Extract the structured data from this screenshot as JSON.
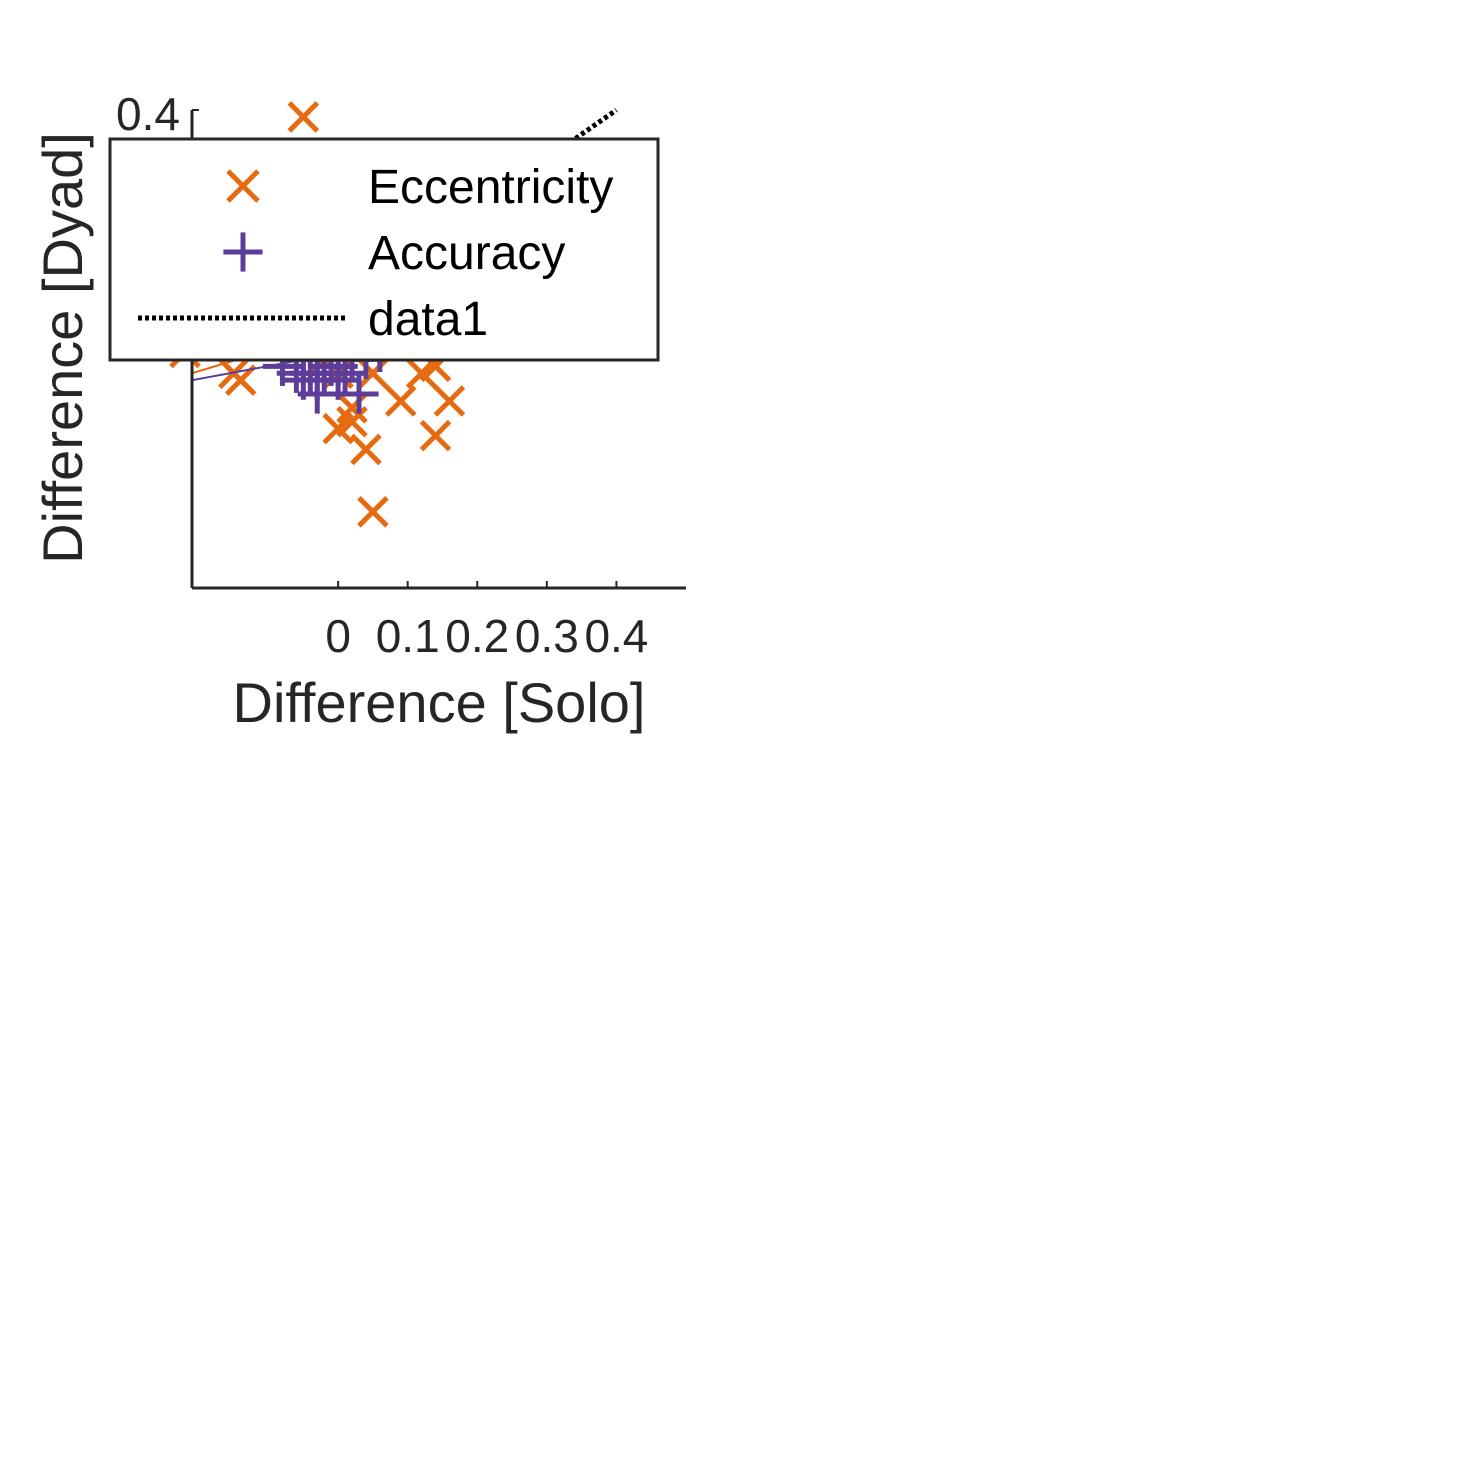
{
  "chart_data": {
    "type": "scatter",
    "xlabel": "Difference [Solo]",
    "ylabel": "Difference [Dyad]",
    "xlim": [
      -0.21,
      0.5
    ],
    "ylim": [
      -0.34,
      0.35
    ],
    "x_ticks": [
      0,
      0.1,
      0.2,
      0.3,
      0.4
    ],
    "x_tick_labels": [
      "0",
      "0.1",
      "0.2",
      "0.3",
      "0.4"
    ],
    "y_tick_labels_visible": [
      "0.4"
    ],
    "grid": false,
    "legend_position": "top-left",
    "series": [
      {
        "name": "Eccentricity",
        "marker": "x",
        "color": "#E66A10",
        "points": [
          [
            -0.05,
            0.34
          ],
          [
            -0.15,
            -0.03
          ],
          [
            -0.14,
            -0.04
          ],
          [
            -0.02,
            -0.01
          ],
          [
            0.0,
            -0.11
          ],
          [
            0.02,
            -0.1
          ],
          [
            0.02,
            -0.08
          ],
          [
            0.04,
            -0.14
          ],
          [
            0.05,
            -0.23
          ],
          [
            0.09,
            -0.07
          ],
          [
            0.12,
            -0.03
          ],
          [
            0.14,
            -0.02
          ],
          [
            0.14,
            -0.12
          ],
          [
            0.16,
            -0.07
          ],
          [
            0.05,
            -0.03
          ],
          [
            0.0,
            -0.03
          ],
          [
            -0.22,
            0.0
          ],
          [
            -0.01,
            0.04
          ]
        ],
        "fit_line": [
          [
            -0.21,
            -0.03
          ],
          [
            0.02,
            0.04
          ]
        ]
      },
      {
        "name": "Accuracy",
        "marker": "+",
        "color": "#5E3C99",
        "points": [
          [
            -0.08,
            -0.02
          ],
          [
            -0.06,
            -0.03
          ],
          [
            -0.05,
            -0.04
          ],
          [
            -0.04,
            -0.03
          ],
          [
            -0.03,
            -0.04
          ],
          [
            -0.03,
            -0.06
          ],
          [
            -0.02,
            -0.03
          ],
          [
            -0.01,
            -0.02
          ],
          [
            0.0,
            -0.02
          ],
          [
            0.01,
            -0.03
          ],
          [
            0.01,
            0.0
          ],
          [
            0.02,
            -0.01
          ],
          [
            0.03,
            -0.06
          ],
          [
            0.04,
            -0.01
          ],
          [
            0.06,
            0.0
          ],
          [
            -0.03,
            -0.01
          ],
          [
            0.0,
            -0.04
          ],
          [
            -0.05,
            -0.01
          ]
        ],
        "fit_line": [
          [
            -0.21,
            -0.04
          ],
          [
            0.06,
            0.01
          ]
        ]
      },
      {
        "name": "data1",
        "style": "dotted-line",
        "color": "#000000",
        "line": [
          [
            0.3,
            0.28
          ],
          [
            0.4,
            0.35
          ]
        ]
      }
    ]
  }
}
